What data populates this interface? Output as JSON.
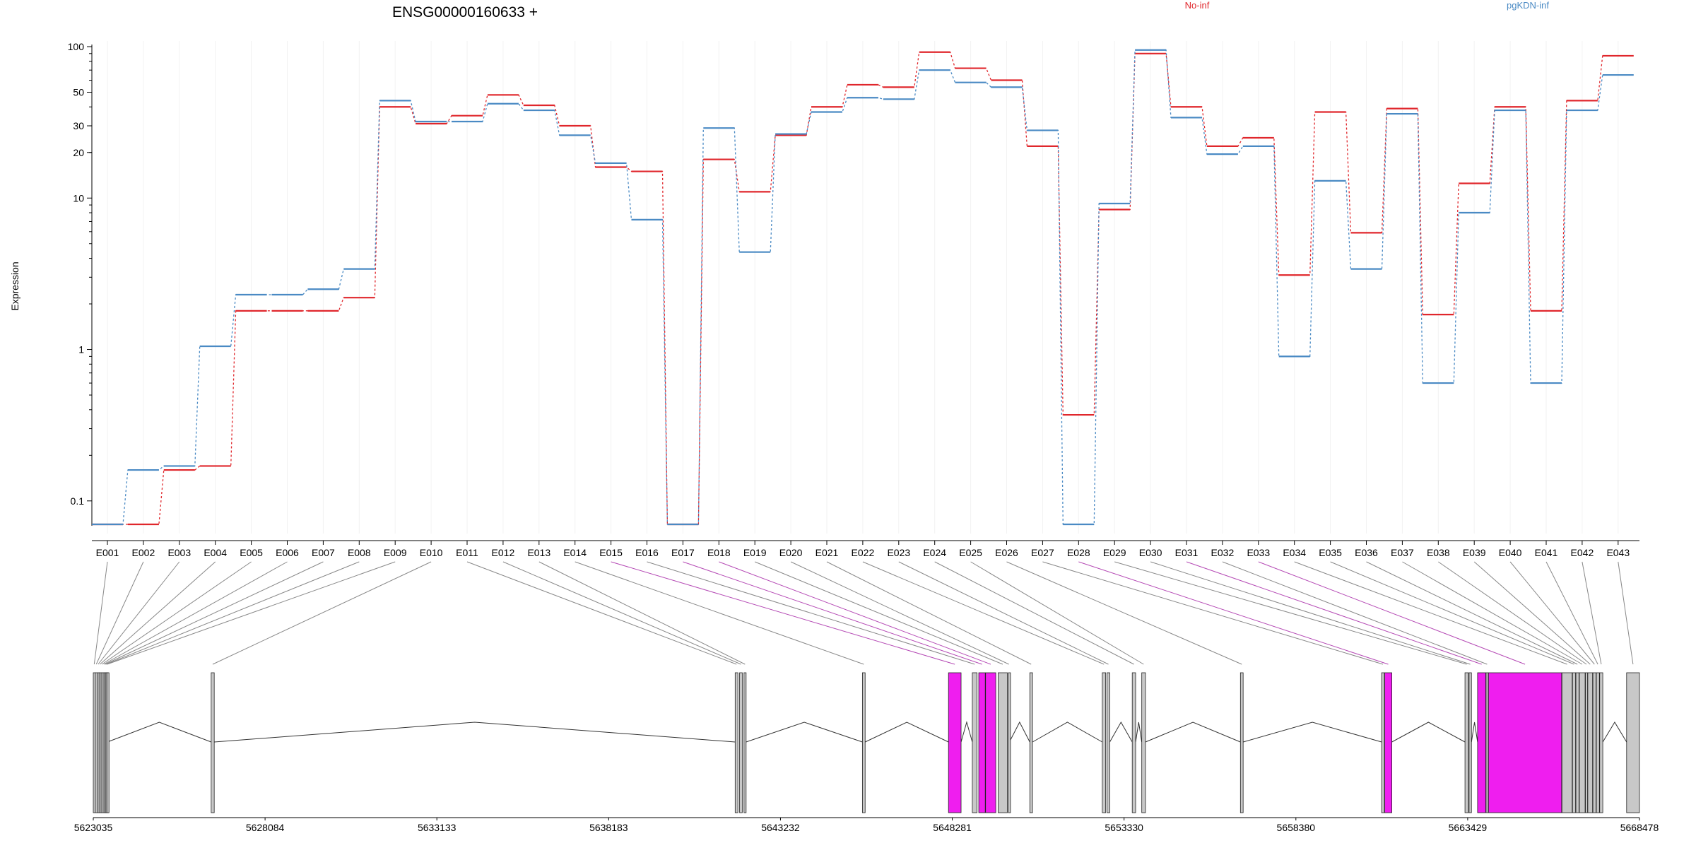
{
  "figure": {
    "title": "ENSG00000160633 +",
    "ylabel": "Expression"
  },
  "colors": {
    "no_inf": "#e0272c",
    "pgkdn_inf": "#4a8ac4",
    "diff_exon": "#ef1eef",
    "plain_exon": "#c8c8c8",
    "connector": "#888888",
    "connector_diff": "#b54ab5"
  },
  "chart_data": {
    "type": "line",
    "x_label": "",
    "y_label": "Expression",
    "y_scale": "log",
    "ylim": [
      0.07,
      120
    ],
    "grid": "vertical light lines at each exon",
    "legend": "top-right",
    "y_ticks": [
      {
        "label": "100",
        "value": 100
      },
      {
        "label": "50",
        "value": 50
      },
      {
        "label": "30",
        "value": 30
      },
      {
        "label": "20",
        "value": 20
      },
      {
        "label": "10",
        "value": 10
      },
      {
        "label": "1",
        "value": 1
      },
      {
        "label": "0.1",
        "value": 0.1
      }
    ],
    "categories": [
      "E001",
      "E002",
      "E003",
      "E004",
      "E005",
      "E006",
      "E007",
      "E008",
      "E009",
      "E010",
      "E011",
      "E012",
      "E013",
      "E014",
      "E015",
      "E016",
      "E017",
      "E018",
      "E019",
      "E020",
      "E021",
      "E022",
      "E023",
      "E024",
      "E025",
      "E026",
      "E027",
      "E028",
      "E029",
      "E030",
      "E031",
      "E032",
      "E033",
      "E034",
      "E035",
      "E036",
      "E037",
      "E038",
      "E039",
      "E040",
      "E041",
      "E042",
      "E043"
    ],
    "series": [
      {
        "name": "No-inf",
        "color": "#e0272c",
        "values": [
          0.07,
          0.07,
          0.16,
          0.17,
          1.8,
          1.8,
          1.8,
          2.2,
          40,
          31,
          35,
          48,
          41,
          30,
          16,
          15,
          0.07,
          18,
          11,
          26,
          40,
          56,
          54,
          92,
          72,
          60,
          22,
          0.37,
          8.4,
          90,
          40,
          22,
          25,
          3.1,
          37,
          5.9,
          39,
          1.7,
          12.5,
          40,
          1.8,
          44,
          87
        ]
      },
      {
        "name": "pgKDN-inf",
        "color": "#4a8ac4",
        "values": [
          0.07,
          0.16,
          0.17,
          1.05,
          2.3,
          2.3,
          2.5,
          3.4,
          44,
          32,
          32,
          42,
          38,
          26,
          17,
          7.2,
          0.07,
          29,
          4.4,
          26.5,
          37,
          46,
          45,
          70,
          58,
          54,
          28,
          0.07,
          9.2,
          95,
          34,
          19.5,
          22,
          0.9,
          13,
          3.4,
          36,
          0.6,
          8,
          38,
          0.6,
          38,
          65
        ]
      }
    ],
    "genome_axis": {
      "ticks": [
        {
          "label": "5623035",
          "value": 5623035
        },
        {
          "label": "5628084",
          "value": 5628084
        },
        {
          "label": "5633133",
          "value": 5633133
        },
        {
          "label": "5638183",
          "value": 5638183
        },
        {
          "label": "5643232",
          "value": 5643232
        },
        {
          "label": "5648281",
          "value": 5648281
        },
        {
          "label": "5653330",
          "value": 5653330
        },
        {
          "label": "5658380",
          "value": 5658380
        },
        {
          "label": "5663429",
          "value": 5663429
        },
        {
          "label": "5668478",
          "value": 5668478
        }
      ],
      "range": [
        5623035,
        5668478
      ]
    },
    "exons": [
      {
        "id": "E001",
        "start": 5623035,
        "end": 5623090,
        "diff": false
      },
      {
        "id": "E002",
        "start": 5623095,
        "end": 5623150,
        "diff": false
      },
      {
        "id": "E003",
        "start": 5623155,
        "end": 5623200,
        "diff": false
      },
      {
        "id": "E004",
        "start": 5623205,
        "end": 5623260,
        "diff": false
      },
      {
        "id": "E005",
        "start": 5623265,
        "end": 5623320,
        "diff": false
      },
      {
        "id": "E006",
        "start": 5623325,
        "end": 5623360,
        "diff": false
      },
      {
        "id": "E007",
        "start": 5623365,
        "end": 5623400,
        "diff": false
      },
      {
        "id": "E008",
        "start": 5623405,
        "end": 5623430,
        "diff": false
      },
      {
        "id": "E009",
        "start": 5623435,
        "end": 5623450,
        "diff": false
      },
      {
        "id": "E010",
        "start": 5626500,
        "end": 5626590,
        "diff": false
      },
      {
        "id": "E011",
        "start": 5641900,
        "end": 5641980,
        "diff": false
      },
      {
        "id": "E012",
        "start": 5642030,
        "end": 5642110,
        "diff": false
      },
      {
        "id": "E013",
        "start": 5642160,
        "end": 5642220,
        "diff": false
      },
      {
        "id": "E014",
        "start": 5645640,
        "end": 5645720,
        "diff": false
      },
      {
        "id": "E015",
        "start": 5648170,
        "end": 5648540,
        "diff": true
      },
      {
        "id": "E016",
        "start": 5648870,
        "end": 5649010,
        "diff": false
      },
      {
        "id": "E017",
        "start": 5649060,
        "end": 5649250,
        "diff": true
      },
      {
        "id": "E018",
        "start": 5649260,
        "end": 5649560,
        "diff": true
      },
      {
        "id": "E019",
        "start": 5649630,
        "end": 5649900,
        "diff": false
      },
      {
        "id": "E020",
        "start": 5649930,
        "end": 5649960,
        "diff": false
      },
      {
        "id": "E021",
        "start": 5650560,
        "end": 5650640,
        "diff": false
      },
      {
        "id": "E022",
        "start": 5652690,
        "end": 5652790,
        "diff": false
      },
      {
        "id": "E023",
        "start": 5652830,
        "end": 5652910,
        "diff": false
      },
      {
        "id": "E024",
        "start": 5653570,
        "end": 5653670,
        "diff": false
      },
      {
        "id": "E025",
        "start": 5653850,
        "end": 5653960,
        "diff": false
      },
      {
        "id": "E026",
        "start": 5656750,
        "end": 5656830,
        "diff": false
      },
      {
        "id": "E027",
        "start": 5660900,
        "end": 5660980,
        "diff": false
      },
      {
        "id": "E028",
        "start": 5660990,
        "end": 5661200,
        "diff": true
      },
      {
        "id": "E029",
        "start": 5663350,
        "end": 5663450,
        "diff": false
      },
      {
        "id": "E030",
        "start": 5663470,
        "end": 5663540,
        "diff": false
      },
      {
        "id": "E031",
        "start": 5663720,
        "end": 5663960,
        "diff": true
      },
      {
        "id": "E032",
        "start": 5663970,
        "end": 5664030,
        "diff": false
      },
      {
        "id": "E033",
        "start": 5664040,
        "end": 5666190,
        "diff": true
      },
      {
        "id": "E034",
        "start": 5666200,
        "end": 5666500,
        "diff": false
      },
      {
        "id": "E035",
        "start": 5666510,
        "end": 5666600,
        "diff": false
      },
      {
        "id": "E036",
        "start": 5666610,
        "end": 5666700,
        "diff": false
      },
      {
        "id": "E037",
        "start": 5666710,
        "end": 5666880,
        "diff": false
      },
      {
        "id": "E038",
        "start": 5666890,
        "end": 5666950,
        "diff": false
      },
      {
        "id": "E039",
        "start": 5666960,
        "end": 5667100,
        "diff": false
      },
      {
        "id": "E040",
        "start": 5667110,
        "end": 5667200,
        "diff": false
      },
      {
        "id": "E041",
        "start": 5667210,
        "end": 5667300,
        "diff": false
      },
      {
        "id": "E042",
        "start": 5667310,
        "end": 5667400,
        "diff": false
      },
      {
        "id": "E043",
        "start": 5668100,
        "end": 5668478,
        "diff": false
      }
    ]
  }
}
